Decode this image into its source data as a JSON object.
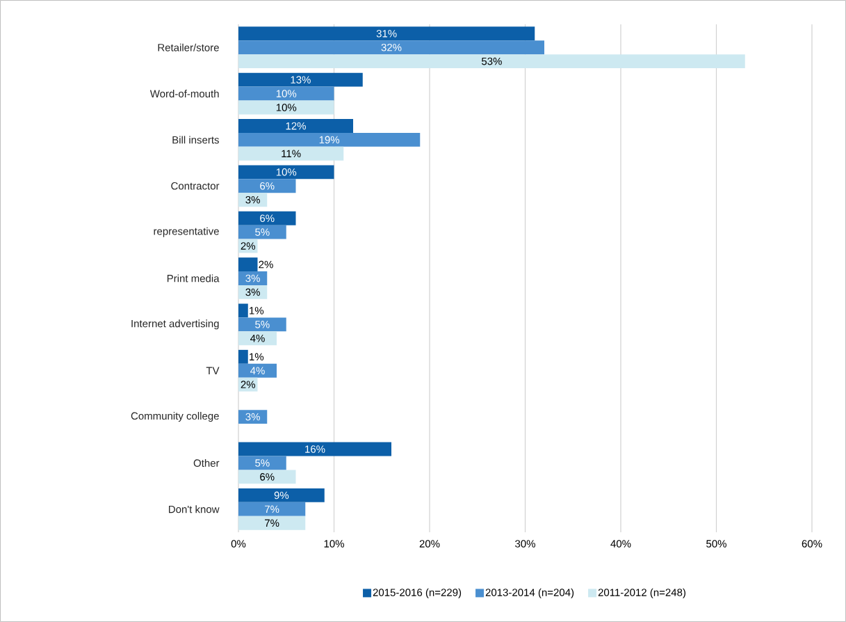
{
  "chart_data": {
    "type": "bar",
    "orientation": "horizontal",
    "categories": [
      "Retailer/store",
      "Word-of-mouth",
      "Bill  inserts",
      "Contractor",
      "representative",
      "Print media",
      "Internet advertising",
      "TV",
      "Community college",
      "Other",
      "Don't know"
    ],
    "series": [
      {
        "name": "2015-2016 (n=229)",
        "color": "#0c5fa8",
        "values": [
          31,
          13,
          12,
          10,
          6,
          2,
          1,
          1,
          null,
          16,
          9
        ],
        "value_labels": [
          "31%",
          "13%",
          "12%",
          "10%",
          "6%",
          "2%",
          "1%",
          "1%",
          null,
          "16%",
          "9%"
        ]
      },
      {
        "name": "2013-2014 (n=204)",
        "color": "#4a8fd0",
        "values": [
          32,
          10,
          19,
          6,
          5,
          3,
          5,
          4,
          3,
          5,
          7
        ],
        "value_labels": [
          "32%",
          "10%",
          "19%",
          "6%",
          "5%",
          "3%",
          "5%",
          "4%",
          "3%",
          "5%",
          "7%"
        ]
      },
      {
        "name": "2011-2012 (n=248)",
        "color": "#cde9f1",
        "values": [
          53,
          10,
          11,
          3,
          2,
          3,
          4,
          2,
          null,
          6,
          7
        ],
        "value_labels": [
          "53%",
          "10%",
          "11%",
          "3%",
          "2%",
          "3%",
          "4%",
          "2%",
          null,
          "6%",
          "7%"
        ]
      }
    ],
    "xlim": [
      0,
      60
    ],
    "xticks": [
      {
        "value": 0,
        "label": "0%"
      },
      {
        "value": 10,
        "label": "10%"
      },
      {
        "value": 20,
        "label": "20%"
      },
      {
        "value": 30,
        "label": "30%"
      },
      {
        "value": 40,
        "label": "40%"
      },
      {
        "value": 50,
        "label": "50%"
      },
      {
        "value": 60,
        "label": "60%"
      }
    ],
    "grid": "x",
    "legend": "bottom"
  }
}
